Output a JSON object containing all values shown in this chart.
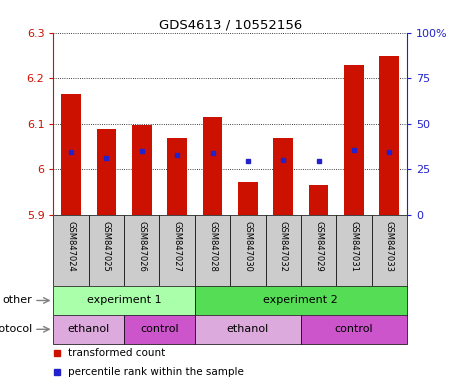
{
  "title": "GDS4613 / 10552156",
  "samples": [
    "GSM847024",
    "GSM847025",
    "GSM847026",
    "GSM847027",
    "GSM847028",
    "GSM847030",
    "GSM847032",
    "GSM847029",
    "GSM847031",
    "GSM847033"
  ],
  "bar_values": [
    6.165,
    6.088,
    6.098,
    6.068,
    6.115,
    5.972,
    6.068,
    5.965,
    6.228,
    6.248
  ],
  "blue_dot_values": [
    6.038,
    6.025,
    6.04,
    6.032,
    6.035,
    6.018,
    6.02,
    6.018,
    6.042,
    6.038
  ],
  "ylim_min": 5.9,
  "ylim_max": 6.3,
  "yticks_left": [
    5.9,
    6.0,
    6.1,
    6.2,
    6.3
  ],
  "yticks_right_labels": [
    "0",
    "25",
    "50",
    "75",
    "100%"
  ],
  "bar_color": "#cc1100",
  "dot_color": "#2222cc",
  "experiment1_samples": [
    0,
    1,
    2,
    3
  ],
  "experiment2_samples": [
    4,
    5,
    6,
    7,
    8,
    9
  ],
  "ethanol1_samples": [
    0,
    1
  ],
  "control1_samples": [
    2,
    3
  ],
  "ethanol2_samples": [
    4,
    5,
    6
  ],
  "control2_samples": [
    7,
    8,
    9
  ],
  "exp1_color": "#aaffaa",
  "exp2_color": "#55dd55",
  "ethanol_color": "#ddaadd",
  "control_color": "#cc55cc",
  "sample_bg_color": "#cccccc",
  "label_other": "other",
  "label_protocol": "protocol",
  "label_exp1": "experiment 1",
  "label_exp2": "experiment 2",
  "label_ethanol": "ethanol",
  "label_control": "control",
  "legend_transformed": "transformed count",
  "legend_percentile": "percentile rank within the sample"
}
